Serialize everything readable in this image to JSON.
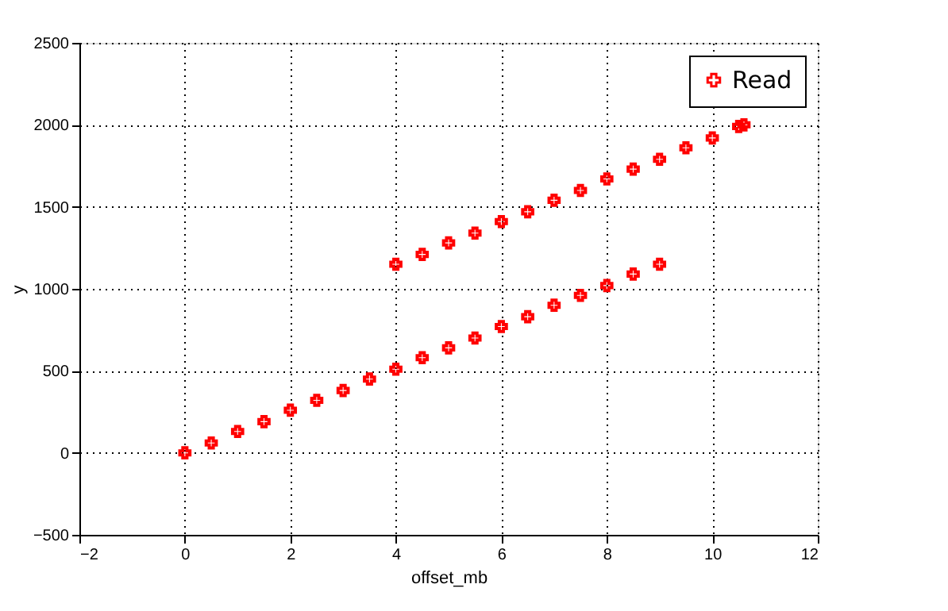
{
  "chart_data": {
    "type": "scatter",
    "xlabel": "offset_mb",
    "ylabel": "y",
    "series": [
      {
        "name": "Read",
        "color": "#ff0000",
        "marker": "cross",
        "x": [
          0,
          0.5,
          1,
          1.5,
          2,
          2.5,
          3,
          3.5,
          4,
          4.5,
          5,
          5.5,
          6,
          6.5,
          7,
          7.5,
          8,
          8.5,
          9,
          4,
          4.5,
          5,
          5.5,
          6,
          6.5,
          7,
          7.5,
          8,
          8.5,
          9,
          9.5,
          10,
          10.5,
          10.6
        ],
        "values": [
          0,
          60,
          130,
          190,
          260,
          320,
          380,
          450,
          510,
          580,
          640,
          700,
          770,
          830,
          900,
          960,
          1020,
          1090,
          1150,
          1150,
          1210,
          1280,
          1340,
          1410,
          1470,
          1540,
          1600,
          1670,
          1730,
          1790,
          1860,
          1920,
          1990,
          2000
        ]
      }
    ],
    "xlim": [
      -2,
      12
    ],
    "xticks": [
      -2,
      0,
      2,
      4,
      6,
      8,
      10,
      12
    ],
    "ylim": [
      -500,
      2500
    ],
    "yticks": [
      -500,
      0,
      500,
      1000,
      1500,
      2000,
      2500
    ],
    "grid": true,
    "legend": "top right"
  }
}
